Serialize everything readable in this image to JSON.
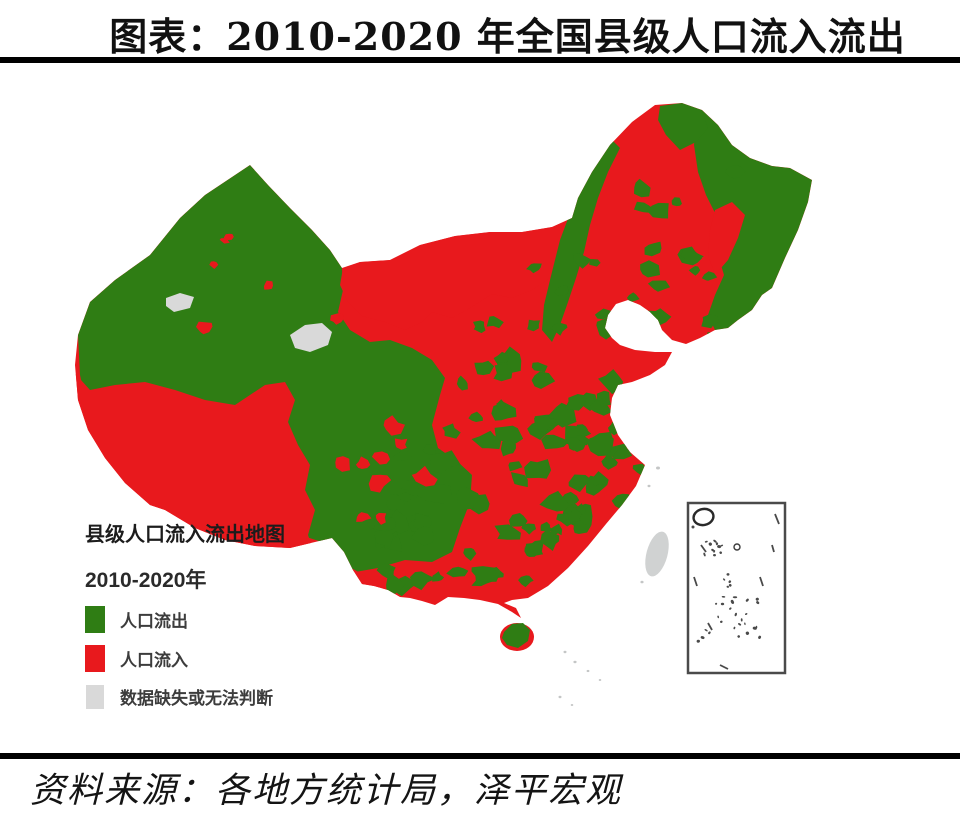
{
  "title": "图表：2010-2020 年全国县级人口流入流出",
  "source": "资料来源：各地方统计局，泽平宏观",
  "legend": {
    "title": "县级人口流入流出地图",
    "period": "2010-2020年",
    "items": [
      {
        "label": "人口流出",
        "color": "#2f7d14"
      },
      {
        "label": "人口流入",
        "color": "#e8191d"
      },
      {
        "label": "数据缺失或无法判断",
        "color": "#d9d9d9"
      }
    ]
  },
  "map": {
    "type": "choropleth",
    "region": "中国（县级行政区）",
    "period": "2010-2020年",
    "inset": "南海诸岛",
    "colors": {
      "inflow_red": "#e8191d",
      "outflow_green": "#2f7d14",
      "missing_gray": "#d9d9d9",
      "taiwan_gray": "#d0d2d2",
      "island_ink": "#4a4a4a",
      "sea_white": "#ffffff"
    },
    "classes": [
      {
        "label": "人口流出",
        "meaning": "net population outflow county"
      },
      {
        "label": "人口流入",
        "meaning": "net population inflow county"
      },
      {
        "label": "数据缺失或无法判断",
        "meaning": "data missing or undeterminable"
      }
    ]
  }
}
